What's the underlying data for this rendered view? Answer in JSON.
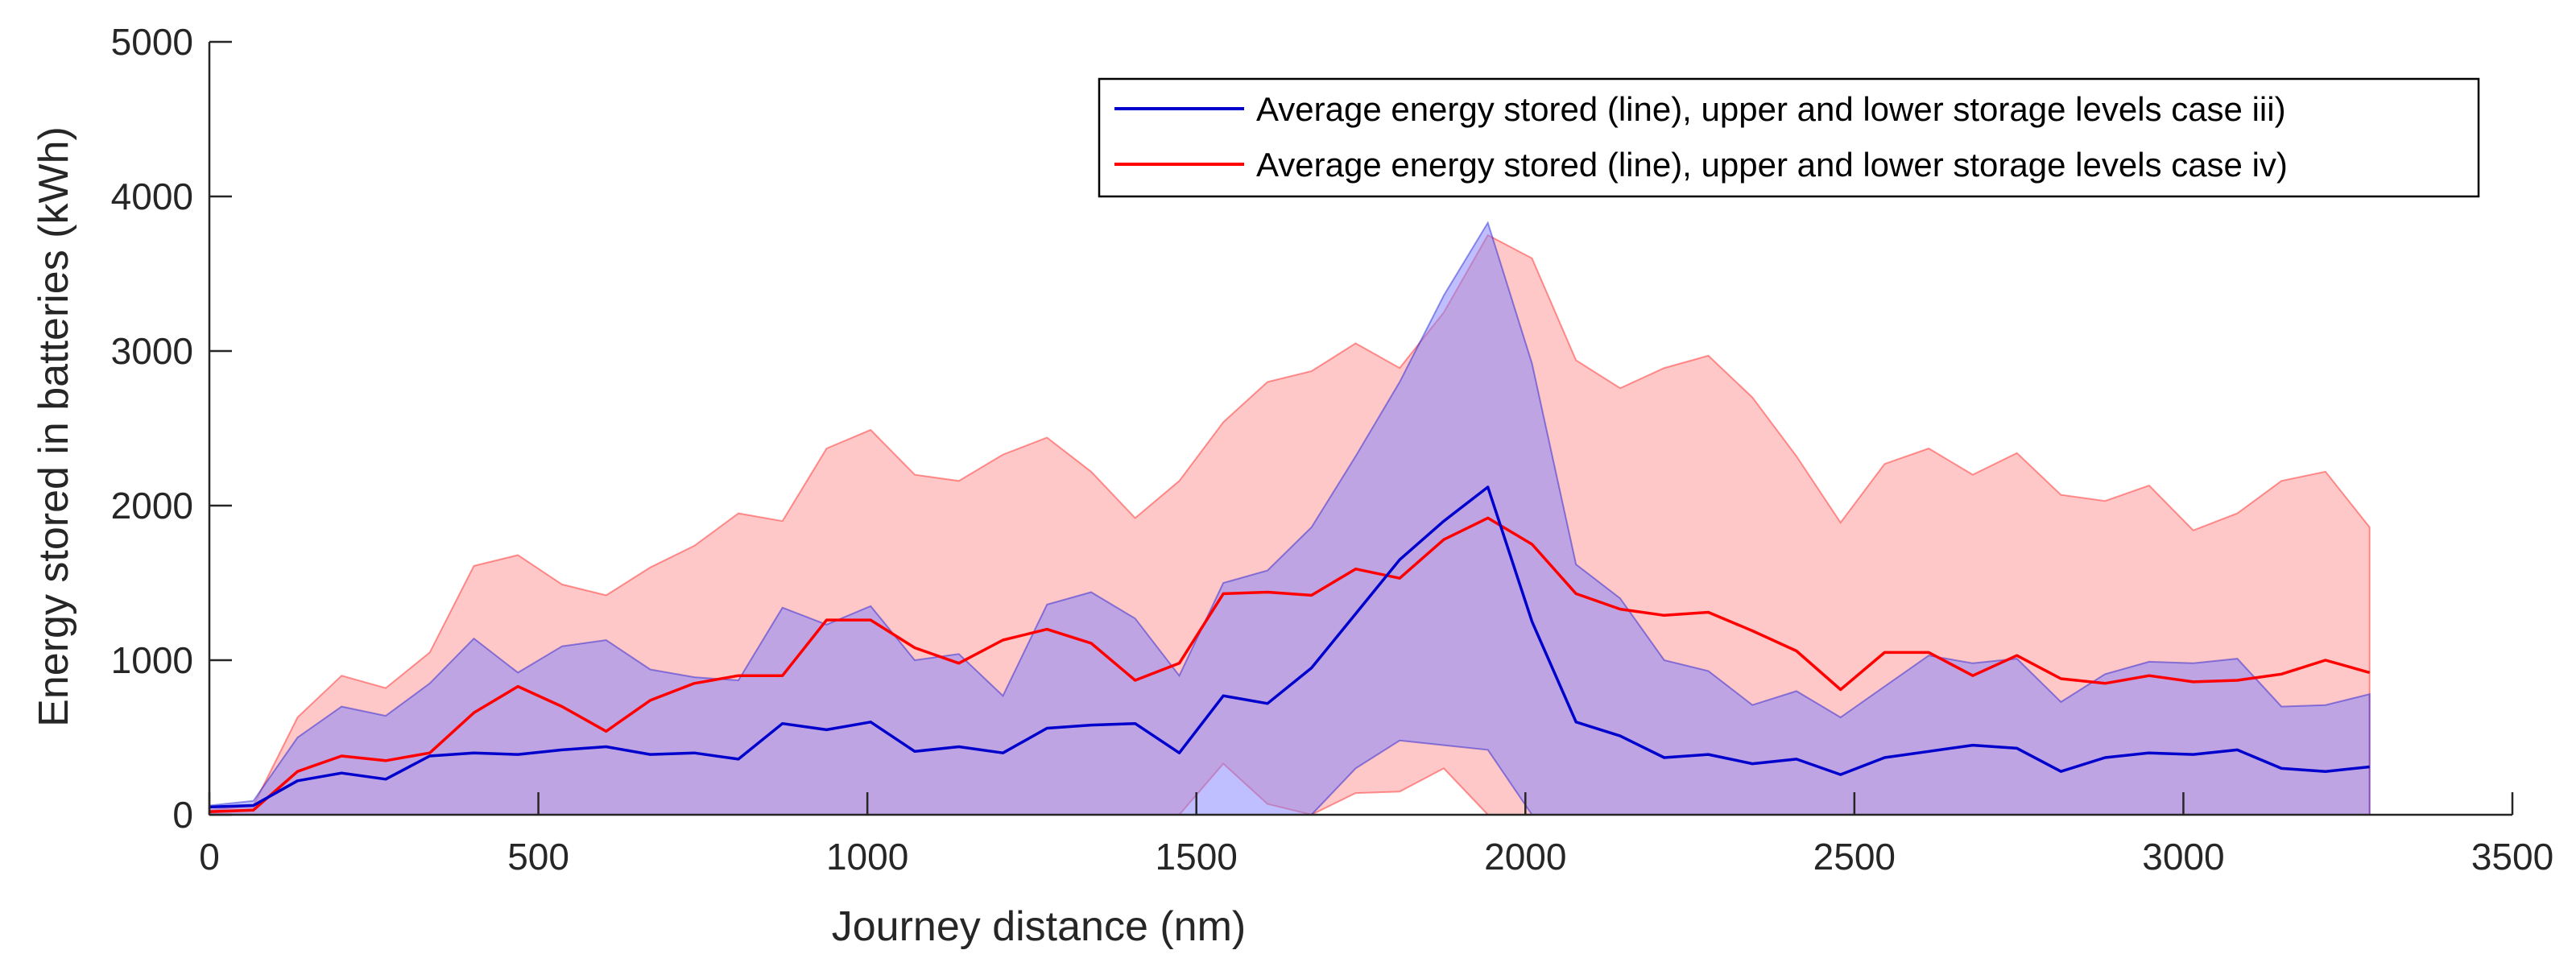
{
  "chart_data": {
    "type": "area",
    "title": "",
    "xlabel": "Journey distance (nm)",
    "ylabel": "Energy stored in batteries (kWh)",
    "xlim": [
      0,
      3500
    ],
    "ylim": [
      0,
      5000
    ],
    "xticks": [
      "0",
      "500",
      "1000",
      "1500",
      "2000",
      "2500",
      "3000",
      "3500"
    ],
    "yticks": [
      "0",
      "1000",
      "2000",
      "3000",
      "4000",
      "5000"
    ],
    "grid": false,
    "legend_position": "top-right",
    "x": [
      0,
      67,
      134,
      201,
      268,
      335,
      402,
      469,
      536,
      603,
      670,
      737,
      804,
      871,
      938,
      1005,
      1072,
      1139,
      1206,
      1273,
      1340,
      1407,
      1474,
      1541,
      1608,
      1675,
      1742,
      1809,
      1876,
      1943,
      2010,
      2077,
      2144,
      2211,
      2278,
      2345,
      2412,
      2479,
      2546,
      2613,
      2680,
      2747,
      2814,
      2881,
      2948,
      3015,
      3082,
      3149,
      3216,
      3283
    ],
    "series": [
      {
        "name": "Average energy stored (line), upper and lower storage levels case iii)",
        "color": "#0000cc",
        "band_color": "#7f7fff",
        "mean": [
          50,
          60,
          220,
          270,
          230,
          380,
          400,
          390,
          420,
          440,
          390,
          400,
          360,
          590,
          550,
          600,
          410,
          440,
          400,
          560,
          580,
          590,
          400,
          770,
          720,
          950,
          1300,
          1650,
          1900,
          2120,
          1250,
          600,
          510,
          370,
          390,
          330,
          360,
          260,
          370,
          410,
          450,
          430,
          280,
          370,
          400,
          390,
          420,
          300,
          280,
          310
        ],
        "upper": [
          60,
          90,
          500,
          700,
          640,
          850,
          1140,
          920,
          1090,
          1130,
          940,
          890,
          870,
          1340,
          1230,
          1350,
          1000,
          1040,
          770,
          1360,
          1440,
          1270,
          900,
          1500,
          1580,
          1860,
          2320,
          2800,
          3360,
          3830,
          2920,
          1620,
          1400,
          1000,
          930,
          710,
          800,
          630,
          830,
          1030,
          980,
          1010,
          730,
          910,
          990,
          980,
          1010,
          700,
          710,
          780
        ],
        "lower": [
          0,
          0,
          0,
          0,
          0,
          0,
          0,
          0,
          0,
          0,
          0,
          0,
          0,
          0,
          0,
          0,
          0,
          0,
          0,
          0,
          0,
          0,
          0,
          0,
          0,
          0,
          300,
          480,
          450,
          420,
          0,
          0,
          0,
          0,
          0,
          0,
          0,
          0,
          0,
          0,
          0,
          0,
          0,
          0,
          0,
          0,
          0,
          0,
          0,
          0
        ]
      },
      {
        "name": "Average energy stored (line), upper and lower storage levels case iv)",
        "color": "#ff0000",
        "band_color": "#ffb0b0",
        "mean": [
          20,
          30,
          280,
          380,
          350,
          400,
          660,
          830,
          700,
          540,
          740,
          850,
          900,
          900,
          1260,
          1260,
          1080,
          980,
          1130,
          1200,
          1110,
          870,
          980,
          1430,
          1440,
          1420,
          1590,
          1530,
          1780,
          1920,
          1750,
          1430,
          1330,
          1290,
          1310,
          1190,
          1060,
          810,
          1050,
          1050,
          900,
          1030,
          880,
          850,
          900,
          860,
          870,
          910,
          1000,
          920
        ],
        "upper": [
          30,
          60,
          630,
          900,
          820,
          1050,
          1610,
          1680,
          1490,
          1420,
          1600,
          1740,
          1950,
          1900,
          2370,
          2490,
          2200,
          2160,
          2330,
          2440,
          2220,
          1920,
          2160,
          2540,
          2800,
          2870,
          3050,
          2890,
          3250,
          3750,
          3600,
          2940,
          2760,
          2890,
          2970,
          2700,
          2320,
          1890,
          2270,
          2370,
          2200,
          2340,
          2070,
          2030,
          2130,
          1840,
          1950,
          2160,
          2220,
          1860
        ],
        "lower": [
          0,
          0,
          0,
          0,
          0,
          0,
          0,
          0,
          0,
          0,
          0,
          0,
          0,
          0,
          0,
          0,
          0,
          0,
          0,
          0,
          0,
          0,
          0,
          330,
          70,
          0,
          140,
          150,
          300,
          0,
          0,
          0,
          0,
          0,
          0,
          0,
          0,
          0,
          0,
          0,
          0,
          0,
          0,
          0,
          0,
          0,
          0,
          0,
          0,
          0
        ]
      }
    ]
  }
}
